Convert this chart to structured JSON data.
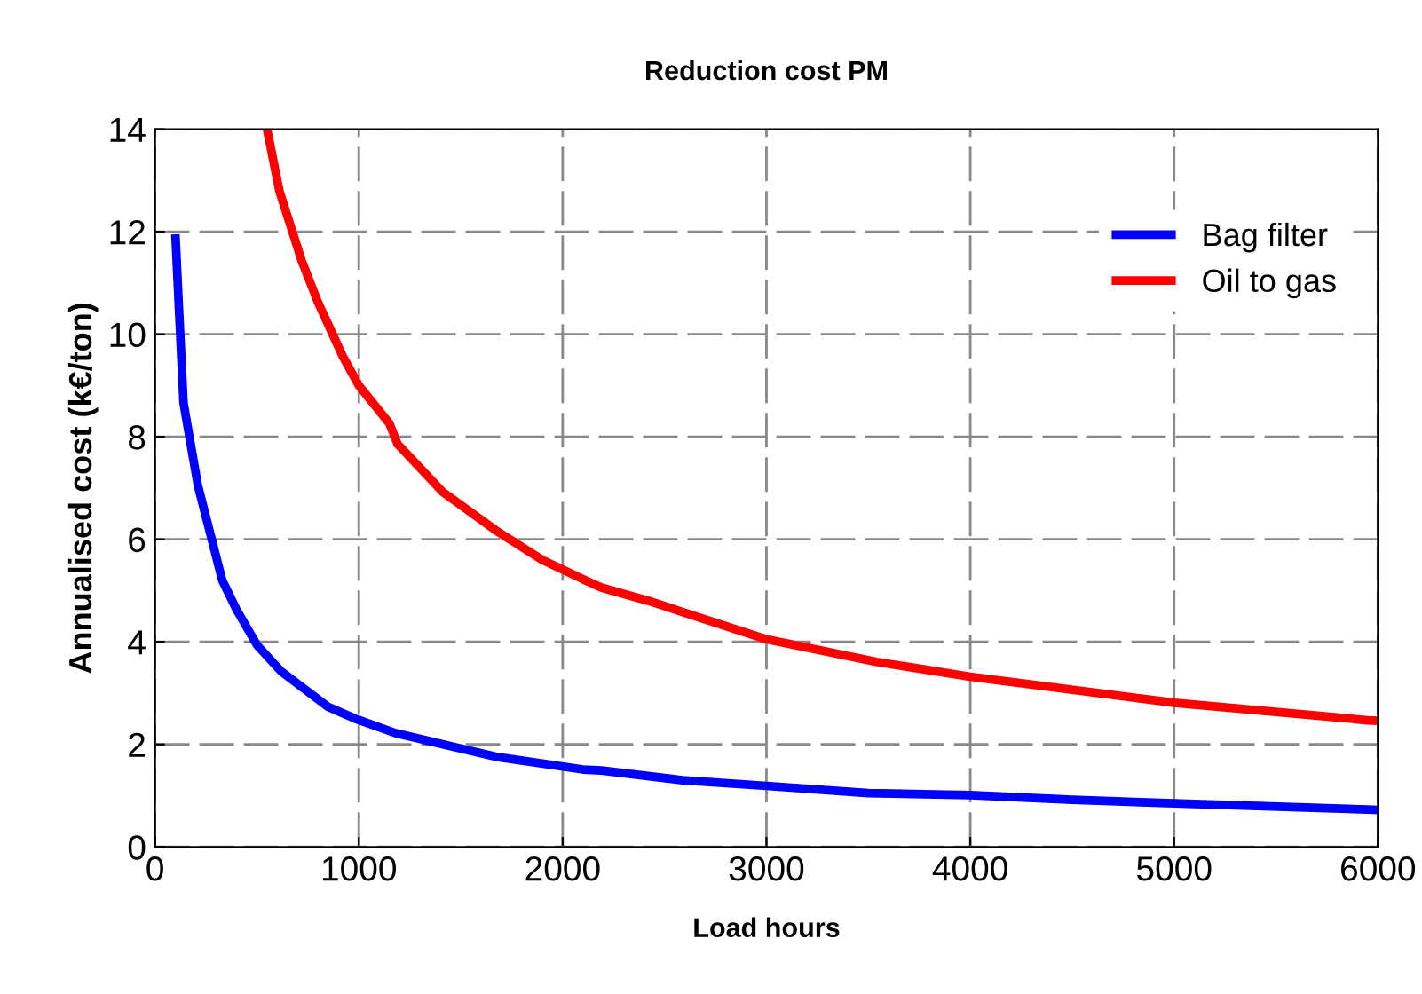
{
  "chart_data": {
    "type": "line",
    "title": "Reduction cost PM",
    "xlabel": "Load hours",
    "ylabel": "Annualised cost (k€/ton)",
    "xlim": [
      0,
      6000
    ],
    "xticks": [
      0,
      1000,
      2000,
      3000,
      4000,
      5000,
      6000
    ],
    "ylim": [
      0,
      14
    ],
    "yticks": [
      0,
      2,
      4,
      6,
      8,
      10,
      12,
      14
    ],
    "grid": true,
    "legend": "top right",
    "line_style": "solid",
    "marker": "none",
    "series": [
      {
        "name": "Bag filter",
        "color": "#0000ff",
        "x": [
          100,
          140,
          210,
          330,
          400,
          500,
          620,
          850,
          990,
          1180,
          1670,
          2100,
          2190,
          2590,
          3000,
          3500,
          4000,
          4500,
          5000,
          5950,
          6000
        ],
        "values": [
          11.95,
          8.66,
          7.06,
          5.2,
          4.63,
          3.94,
          3.42,
          2.73,
          2.49,
          2.22,
          1.76,
          1.51,
          1.49,
          1.3,
          1.19,
          1.05,
          1.01,
          0.92,
          0.85,
          0.73,
          0.72
        ]
      },
      {
        "name": "Oil to gas",
        "color": "#ff0000",
        "x": [
          550,
          610,
          720,
          800,
          920,
          1000,
          1150,
          1190,
          1410,
          1670,
          1900,
          2100,
          2190,
          2420,
          3000,
          3540,
          4000,
          5000,
          5950,
          6000
        ],
        "values": [
          14.0,
          12.8,
          11.43,
          10.62,
          9.58,
          9.0,
          8.26,
          7.86,
          6.93,
          6.18,
          5.6,
          5.22,
          5.06,
          4.8,
          4.05,
          3.61,
          3.32,
          2.81,
          2.47,
          2.46
        ]
      }
    ]
  }
}
